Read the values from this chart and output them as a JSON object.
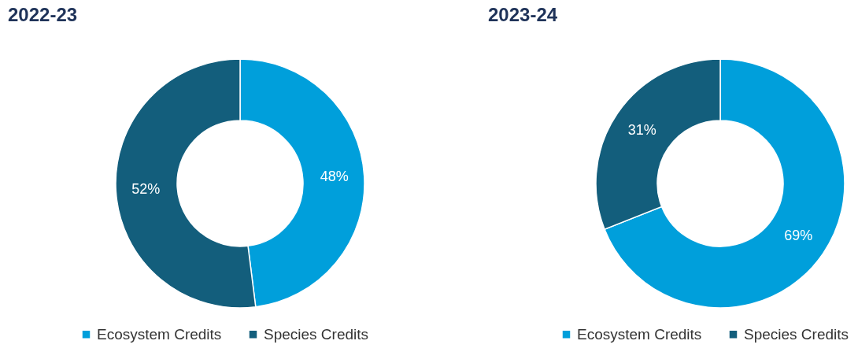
{
  "chart_data": [
    {
      "type": "donut",
      "title": "2022-23",
      "categories": [
        "Ecosystem Credits",
        "Species Credits"
      ],
      "values": [
        48,
        52
      ],
      "colors": [
        "#009fdb",
        "#135e7c"
      ],
      "value_labels": [
        "48%",
        "52%"
      ],
      "legend": "bottom"
    },
    {
      "type": "donut",
      "title": "2023-24",
      "categories": [
        "Ecosystem Credits",
        "Species Credits"
      ],
      "values": [
        69,
        31
      ],
      "colors": [
        "#009fdb",
        "#135e7c"
      ],
      "value_labels": [
        "69%",
        "31%"
      ],
      "legend": "bottom"
    }
  ]
}
